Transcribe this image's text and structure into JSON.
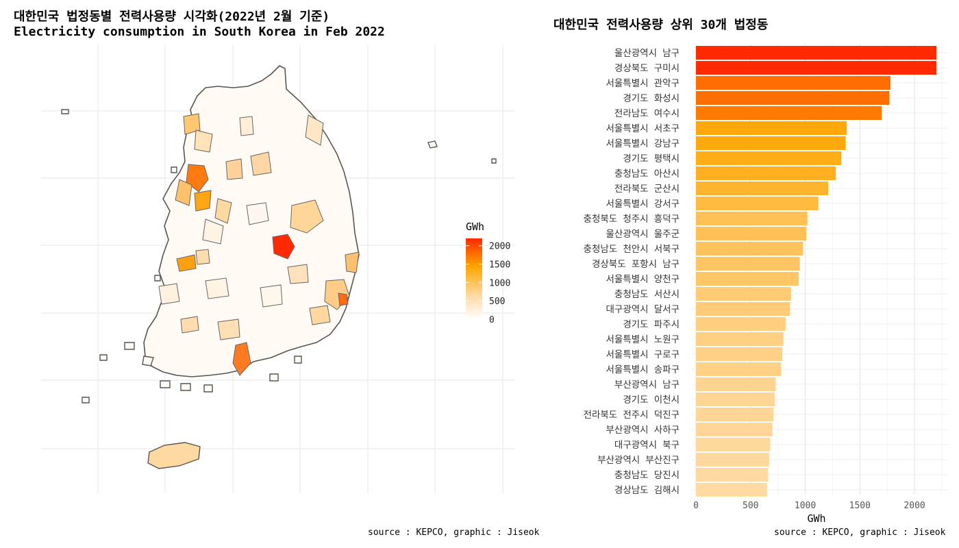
{
  "left_panel": {
    "title": "대한민국 법정동별 전력사용량 시각화(2022년 2월 기준)",
    "subtitle": "Electricity consumption in South Korea in Feb 2022",
    "source": "source : KEPCO, graphic : Jiseok",
    "legend": {
      "title": "GWh",
      "ticks": [
        0,
        500,
        1000,
        1500,
        2000
      ],
      "range": [
        0,
        2200
      ],
      "colors": [
        "#ffffff",
        "#ffd9a0",
        "#ffa500",
        "#ff2a00"
      ]
    }
  },
  "right_panel": {
    "title": "대한민국 전력사용량 상위 30개 법정동",
    "source": "source : KEPCO, graphic : Jiseok"
  },
  "chart_data": {
    "type": "bar",
    "orientation": "horizontal",
    "xlabel": "GWh",
    "xlim": [
      0,
      2250
    ],
    "xticks": [
      0,
      500,
      1000,
      1500,
      2000
    ],
    "grid": true,
    "categories": [
      "울산광역시 남구",
      "경상북도 구미시",
      "서울특별시 관악구",
      "경기도 화성시",
      "전라남도 여수시",
      "서울특별시 서초구",
      "서울특별시 강남구",
      "경기도 평택시",
      "충청남도 아산시",
      "전라북도 군산시",
      "서울특별시 강서구",
      "충청북도 청주시 흥덕구",
      "울산광역시 울주군",
      "충청남도 천안시 서북구",
      "경상북도 포항시 남구",
      "서울특별시 양천구",
      "충청남도 서산시",
      "대구광역시 달서구",
      "경기도 파주시",
      "서울특별시 노원구",
      "서울특별시 구로구",
      "서울특별시 송파구",
      "부산광역시 남구",
      "경기도 이천시",
      "전라북도 전주시 덕진구",
      "부산광역시 사하구",
      "대구광역시 북구",
      "부산광역시 부산진구",
      "충청남도 당진시",
      "경상남도 김해시"
    ],
    "values": [
      2200,
      2200,
      1780,
      1770,
      1700,
      1380,
      1370,
      1330,
      1280,
      1210,
      1120,
      1020,
      1010,
      980,
      950,
      940,
      870,
      860,
      820,
      800,
      790,
      780,
      730,
      720,
      710,
      700,
      680,
      670,
      660,
      650
    ]
  }
}
